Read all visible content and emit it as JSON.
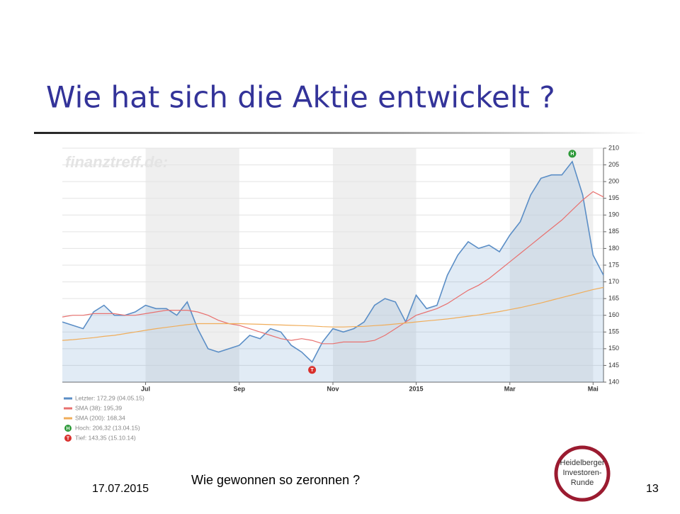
{
  "slide": {
    "title": "Wie hat sich die Aktie entwickelt ?",
    "caption": "Wie gewonnen so zeronnen ?",
    "date": "17.07.2015",
    "page": "13",
    "logo": [
      "Heidelberger",
      "Investoren-",
      "Runde"
    ]
  },
  "chart_data": {
    "type": "line",
    "watermark": "finanztreff.de:",
    "categories": [
      null,
      null,
      null,
      null,
      null,
      null,
      null,
      null,
      "Jul",
      null,
      null,
      null,
      null,
      null,
      null,
      null,
      null,
      "Sep",
      null,
      null,
      null,
      null,
      null,
      null,
      null,
      null,
      "Nov",
      null,
      null,
      null,
      null,
      null,
      null,
      null,
      "2015",
      null,
      null,
      null,
      null,
      null,
      null,
      null,
      null,
      "Mar",
      null,
      null,
      null,
      null,
      null,
      null,
      null,
      "Mai",
      null
    ],
    "ylim": [
      140,
      210
    ],
    "yticks": [
      140,
      145,
      150,
      155,
      160,
      165,
      170,
      175,
      180,
      185,
      190,
      195,
      200,
      205,
      210
    ],
    "grid": true,
    "series": [
      {
        "name": "Letzter: 172,29 (04.05.15)",
        "color": "#5b8ec6",
        "area": true,
        "values": [
          158,
          157,
          156,
          161,
          163,
          160,
          160,
          161,
          163,
          162,
          162,
          160,
          164,
          156,
          150,
          149,
          150,
          151,
          154,
          153,
          156,
          155,
          151,
          149,
          146,
          152,
          156,
          155,
          156,
          158,
          163,
          165,
          164,
          158,
          166,
          162,
          163,
          172,
          178,
          182,
          180,
          181,
          179,
          184,
          188,
          196,
          201,
          202,
          202,
          206,
          196,
          178,
          172
        ]
      },
      {
        "name": "SMA (38): 195,39",
        "color": "#e8716f",
        "values": [
          159.5,
          160,
          160,
          160.5,
          160.5,
          160.5,
          160,
          160,
          160.5,
          161,
          161.5,
          161.5,
          161.5,
          161,
          160,
          158.5,
          157.5,
          157,
          156,
          155,
          154,
          153,
          152.5,
          153,
          152.5,
          151.5,
          151.5,
          152,
          152,
          152,
          152.5,
          154,
          156,
          158,
          160,
          161,
          162,
          163.5,
          165.5,
          167.5,
          169,
          171,
          173.5,
          176,
          178.5,
          181,
          183.5,
          186,
          188.5,
          191.5,
          194.5,
          197,
          195.4
        ]
      },
      {
        "name": "SMA (200): 168,34",
        "color": "#f0ad5a",
        "values": [
          152.5,
          152.7,
          153,
          153.3,
          153.7,
          154,
          154.5,
          155,
          155.5,
          156,
          156.4,
          156.8,
          157.2,
          157.5,
          157.5,
          157.5,
          157.5,
          157.5,
          157.4,
          157.3,
          157.2,
          157.1,
          157,
          156.9,
          156.8,
          156.6,
          156.5,
          156.5,
          156.6,
          156.7,
          156.9,
          157.1,
          157.4,
          157.7,
          158,
          158.3,
          158.6,
          158.9,
          159.3,
          159.7,
          160.1,
          160.6,
          161.1,
          161.7,
          162.3,
          163,
          163.7,
          164.5,
          165.3,
          166.1,
          166.9,
          167.7,
          168.34
        ]
      }
    ],
    "annotations": [
      {
        "text": "H",
        "color": "#2e9a3a",
        "legend": "Hoch: 206,32 (13.04.15)"
      },
      {
        "text": "T",
        "color": "#d9302c",
        "legend": "Tief: 143,35 (15.10.14)"
      }
    ]
  }
}
